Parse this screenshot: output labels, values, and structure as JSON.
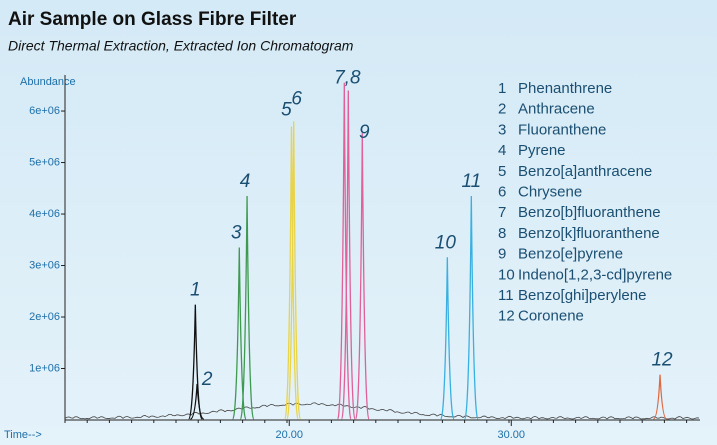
{
  "chart_data": {
    "type": "chromatogram",
    "title": "Air Sample on Glass Fibre Filter",
    "subtitle": "Direct Thermal Extraction, Extracted Ion Chromatogram",
    "y_label": "Abundance",
    "x_label": "Time-->",
    "xlim": [
      9.9,
      38.5
    ],
    "xticks": [
      {
        "value": 20,
        "label": "20.00"
      },
      {
        "value": 30,
        "label": "30.00"
      }
    ],
    "ylim": [
      0,
      6700000
    ],
    "yticks": [
      {
        "value": 1000000,
        "label": "1e+06"
      },
      {
        "value": 2000000,
        "label": "2e+06"
      },
      {
        "value": 3000000,
        "label": "3e+06"
      },
      {
        "value": 4000000,
        "label": "4e+06"
      },
      {
        "value": 5000000,
        "label": "5e+06"
      },
      {
        "value": 6000000,
        "label": "6e+06"
      }
    ],
    "peaks": [
      {
        "label": "1",
        "rt": 15.77,
        "height": 2240000,
        "color": "#111111"
      },
      {
        "label": "2",
        "rt": 15.85,
        "height": 700000,
        "color": "#111111"
      },
      {
        "label": "3",
        "rt": 17.75,
        "height": 3350000,
        "color": "#3f9a50"
      },
      {
        "label": "4",
        "rt": 18.1,
        "height": 4350000,
        "color": "#3f9a50"
      },
      {
        "label": "5",
        "rt": 20.1,
        "height": 5700000,
        "color": "#e8d44a"
      },
      {
        "label": "6",
        "rt": 20.2,
        "height": 5800000,
        "color": "#e8d44a"
      },
      {
        "label": "7,8",
        "rt": 22.48,
        "height": 6550000,
        "color": "#e0609a"
      },
      {
        "label": null,
        "rt": 22.66,
        "height": 6400000,
        "color": "#e0609a"
      },
      {
        "label": "9",
        "rt": 23.29,
        "height": 5570000,
        "color": "#e0609a"
      },
      {
        "label": "10",
        "rt": 27.12,
        "height": 3160000,
        "color": "#3ab0e0"
      },
      {
        "label": "11",
        "rt": 28.2,
        "height": 4350000,
        "color": "#3ab0e0"
      },
      {
        "label": "12",
        "rt": 36.7,
        "height": 880000,
        "color": "#e06a40"
      }
    ],
    "legend": [
      {
        "number": "1",
        "name": "Phenanthrene"
      },
      {
        "number": "2",
        "name": "Anthracene"
      },
      {
        "number": "3",
        "name": "Fluoranthene"
      },
      {
        "number": "4",
        "name": "Pyrene"
      },
      {
        "number": "5",
        "name": "Benzo[a]anthracene"
      },
      {
        "number": "6",
        "name": "Chrysene"
      },
      {
        "number": "7",
        "name": "Benzo[b]fluoranthene"
      },
      {
        "number": "8",
        "name": "Benzo[k]fluoranthene"
      },
      {
        "number": "9",
        "name": "Benzo[e]pyrene"
      },
      {
        "number": "10",
        "name": "Indeno[1,2,3-cd]pyrene"
      },
      {
        "number": "11",
        "name": "Benzo[ghi]perylene"
      },
      {
        "number": "12",
        "name": "Coronene"
      }
    ]
  }
}
